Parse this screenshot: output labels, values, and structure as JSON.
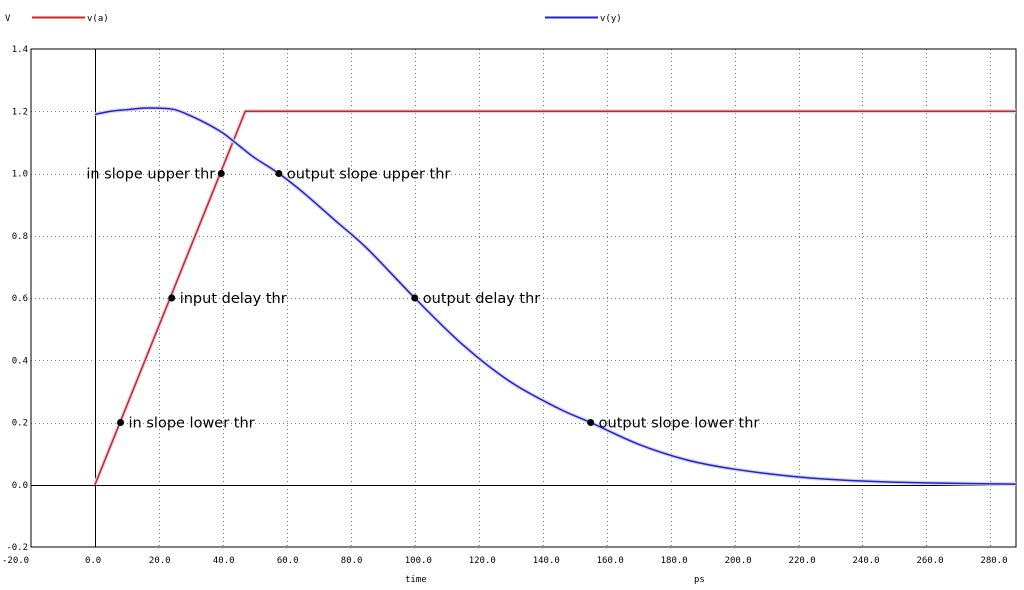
{
  "chart_data": {
    "type": "line",
    "xlabel": "time",
    "xunit": "ps",
    "ylabel": "V",
    "xlim": [
      -20,
      288
    ],
    "ylim": [
      -0.2,
      1.4
    ],
    "x_ticks": [
      -20,
      0,
      20,
      40,
      60,
      80,
      100,
      120,
      140,
      160,
      180,
      200,
      220,
      240,
      260,
      280
    ],
    "x_tick_labels": [
      "-20.0",
      "0.0",
      "20.0",
      "40.0",
      "60.0",
      "80.0",
      "100.0",
      "120.0",
      "140.0",
      "160.0",
      "180.0",
      "200.0",
      "220.0",
      "240.0",
      "260.0",
      "280.0"
    ],
    "y_ticks": [
      -0.2,
      0.0,
      0.2,
      0.4,
      0.6,
      0.8,
      1.0,
      1.2,
      1.4
    ],
    "y_tick_labels": [
      "-0.2",
      "0.0",
      "0.2",
      "0.4",
      "0.6",
      "0.8",
      "1.0",
      "1.2",
      "1.4"
    ],
    "grid": true,
    "legend_position": "top",
    "series": [
      {
        "name": "v(a)",
        "color": "#d42020",
        "x": [
          0,
          47,
          288
        ],
        "y": [
          0.0,
          1.2,
          1.2
        ]
      },
      {
        "name": "v(y)",
        "color": "#2020d4",
        "x": [
          0,
          5,
          10,
          15,
          20,
          25,
          30,
          35,
          40,
          45,
          50,
          57.5,
          65,
          75,
          85,
          100,
          115,
          130,
          145,
          155,
          170,
          185,
          200,
          220,
          240,
          260,
          280,
          288
        ],
        "y": [
          1.19,
          1.2,
          1.205,
          1.21,
          1.21,
          1.205,
          1.185,
          1.16,
          1.13,
          1.09,
          1.05,
          1.0,
          0.94,
          0.85,
          0.76,
          0.6,
          0.45,
          0.33,
          0.245,
          0.2,
          0.13,
          0.08,
          0.05,
          0.025,
          0.012,
          0.006,
          0.003,
          0.002
        ]
      }
    ],
    "annotations": [
      {
        "text": "in slope upper thr",
        "x": 39.5,
        "y": 1.0,
        "side": "left"
      },
      {
        "text": "input delay thr",
        "x": 24,
        "y": 0.6,
        "side": "right"
      },
      {
        "text": "in slope lower thr",
        "x": 8,
        "y": 0.2,
        "side": "right"
      },
      {
        "text": "output slope upper thr",
        "x": 57.5,
        "y": 1.0,
        "side": "right"
      },
      {
        "text": "output delay thr",
        "x": 100,
        "y": 0.6,
        "side": "right"
      },
      {
        "text": "output slope lower thr",
        "x": 155,
        "y": 0.2,
        "side": "right"
      }
    ]
  }
}
